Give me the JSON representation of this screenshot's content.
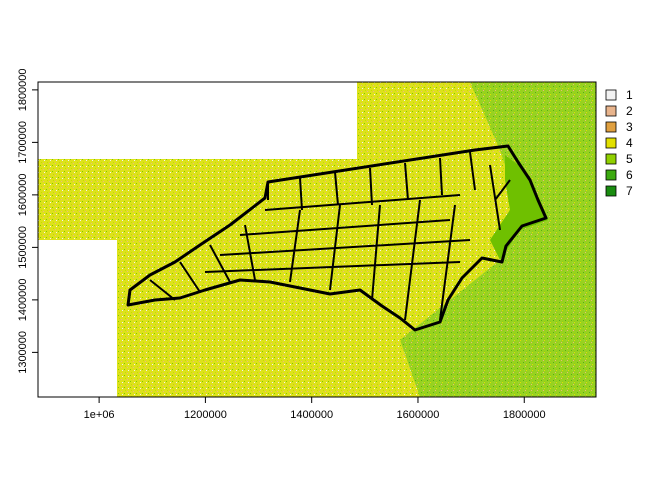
{
  "map": {
    "type": "raster-with-county-boundaries",
    "x_axis": {
      "ticks": [
        "1e+06",
        "1200000",
        "1400000",
        "1600000",
        "1800000"
      ],
      "tick_values": [
        1000000,
        1200000,
        1400000,
        1600000,
        1800000
      ],
      "range": [
        885000,
        1935000
      ]
    },
    "y_axis": {
      "ticks": [
        "1300000",
        "1400000",
        "1500000",
        "1600000",
        "1700000",
        "1800000"
      ],
      "tick_values": [
        1300000,
        1400000,
        1500000,
        1600000,
        1700000,
        1800000
      ],
      "range": [
        1215000,
        1815000
      ]
    },
    "legend": {
      "placement": "right",
      "items": [
        {
          "label": "1",
          "color": "#f2f2f2"
        },
        {
          "label": "2",
          "color": "#e8b48c"
        },
        {
          "label": "3",
          "color": "#e0a040"
        },
        {
          "label": "4",
          "color": "#e2e000"
        },
        {
          "label": "5",
          "color": "#90d000"
        },
        {
          "label": "6",
          "color": "#3caa10"
        },
        {
          "label": "7",
          "color": "#1a8c10"
        }
      ]
    },
    "colors": {
      "boundary": "#000000",
      "frame": "#000000",
      "nodata": "#ffffff"
    }
  }
}
